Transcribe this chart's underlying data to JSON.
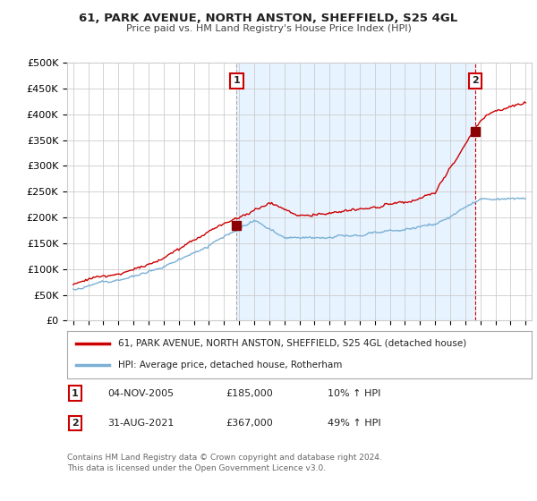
{
  "title": "61, PARK AVENUE, NORTH ANSTON, SHEFFIELD, S25 4GL",
  "subtitle": "Price paid vs. HM Land Registry's House Price Index (HPI)",
  "ylabel_ticks": [
    0,
    50000,
    100000,
    150000,
    200000,
    250000,
    300000,
    350000,
    400000,
    450000,
    500000
  ],
  "ylabel_labels": [
    "£0",
    "£50K",
    "£100K",
    "£150K",
    "£200K",
    "£250K",
    "£300K",
    "£350K",
    "£400K",
    "£450K",
    "£500K"
  ],
  "ylim": [
    0,
    500000
  ],
  "x_start_year": 1995,
  "x_end_year": 2025,
  "sale1_year": 2005.84,
  "sale1_price": 185000,
  "sale2_year": 2021.66,
  "sale2_price": 367000,
  "sale1_label": "1",
  "sale2_label": "2",
  "sale1_date": "04-NOV-2005",
  "sale1_amount": "£185,000",
  "sale1_hpi": "10% ↑ HPI",
  "sale2_date": "31-AUG-2021",
  "sale2_amount": "£367,000",
  "sale2_hpi": "49% ↑ HPI",
  "line1_color": "#cc0000",
  "line2_color": "#7ab0d4",
  "shade_color": "#ddeeff",
  "legend1_label": "61, PARK AVENUE, NORTH ANSTON, SHEFFIELD, S25 4GL (detached house)",
  "legend2_label": "HPI: Average price, detached house, Rotherham",
  "footer": "Contains HM Land Registry data © Crown copyright and database right 2024.\nThis data is licensed under the Open Government Licence v3.0.",
  "background_color": "#ffffff",
  "plot_bg_color": "#ffffff",
  "grid_color": "#cccccc"
}
